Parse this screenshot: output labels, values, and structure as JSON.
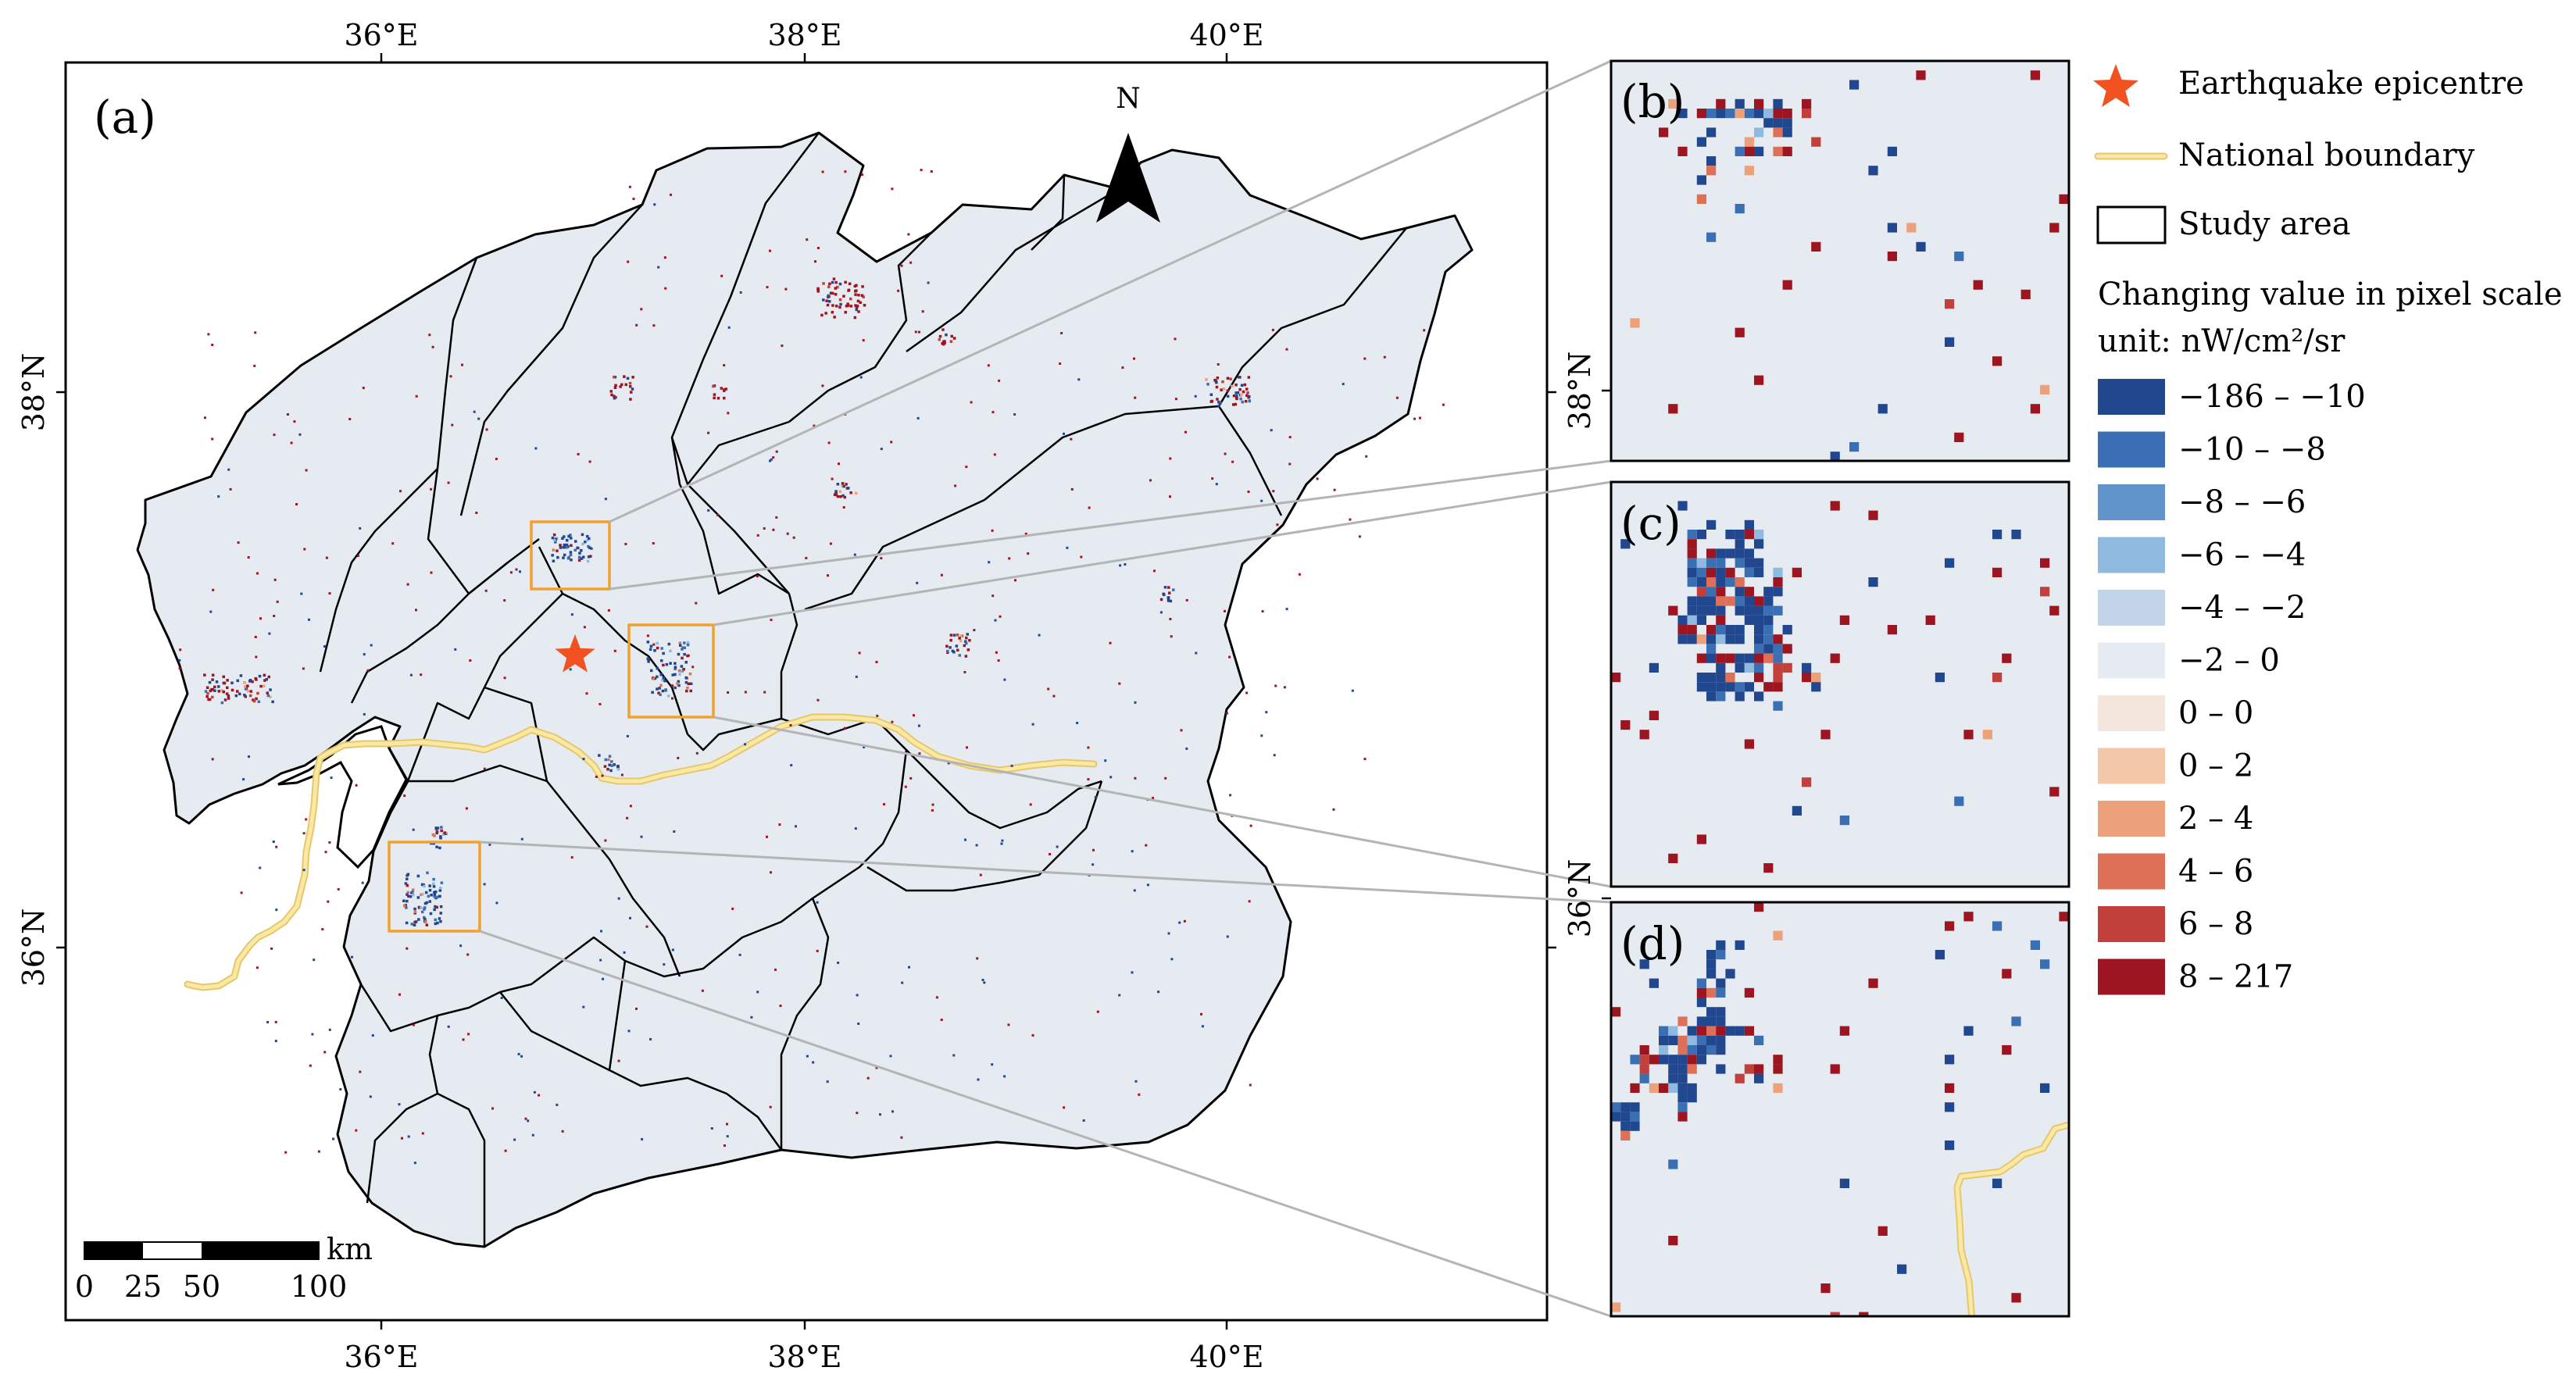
{
  "main_map": {
    "panel_label": "(a)",
    "x_ticks_top": [
      "36°E",
      "38°E",
      "40°E"
    ],
    "x_ticks_bottom": [
      "36°E",
      "38°E",
      "40°E"
    ],
    "y_ticks": [
      "38°N",
      "36°N"
    ],
    "north_label": "N",
    "scale_bar": {
      "unit": "km",
      "labels": [
        "0",
        "25",
        "50",
        "100"
      ]
    }
  },
  "insets": [
    {
      "panel_label": "(b)",
      "side_label": "38°N"
    },
    {
      "panel_label": "(c)",
      "side_label": ""
    },
    {
      "panel_label": "(d)",
      "side_label": "36°N"
    }
  ],
  "legend": {
    "epicentre_label": "Earthquake epicentre",
    "boundary_label": "National boundary",
    "study_area_label": "Study area",
    "title": "Changing value in pixel scale",
    "unit": "unit: nW/cm²/sr",
    "classes": [
      {
        "label": "−186 – −10",
        "color": "#21478f"
      },
      {
        "label": "−10 – −8",
        "color": "#3a6fb4"
      },
      {
        "label": "−8 – −6",
        "color": "#6294cc"
      },
      {
        "label": "−6 – −4",
        "color": "#8fb9de"
      },
      {
        "label": "−4 – −2",
        "color": "#c1d4e8"
      },
      {
        "label": "−2 – 0",
        "color": "#e5ebf1"
      },
      {
        "label": "0 – 0",
        "color": "#f3e6dc"
      },
      {
        "label": "0 – 2",
        "color": "#f2c8a8"
      },
      {
        "label": "2 – 4",
        "color": "#eda17a"
      },
      {
        "label": "4 – 6",
        "color": "#de7058"
      },
      {
        "label": "6 – 8",
        "color": "#c2403c"
      },
      {
        "label": "8 – 217",
        "color": "#9c1521"
      }
    ]
  },
  "colors": {
    "study_area_fill": "#e5ebf1",
    "boundary_line": "#f7dd86",
    "zoom_box": "#f2a12c",
    "epicentre": "#f2521f",
    "leader_line": "#b4b4b4"
  }
}
